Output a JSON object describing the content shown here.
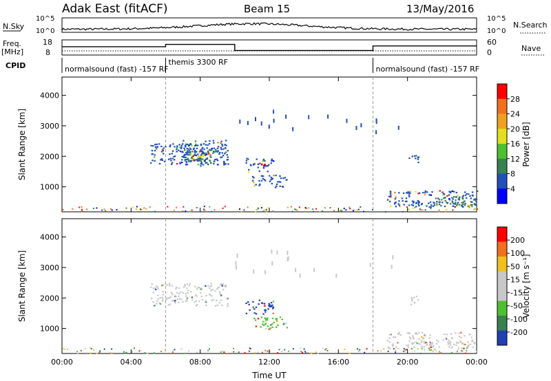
{
  "header": {
    "station": "Adak East (fitACF)",
    "beam": "Beam 15",
    "date": "13/May/2016"
  },
  "summary": {
    "nsky_label": "N.Sky",
    "nsearch_label": "N.Search",
    "nsky_ticks": [
      "10^5",
      "10^0"
    ],
    "nsearch_ticks": [
      "10^5",
      "10^0"
    ],
    "freq_label": "Freq.",
    "freq_unit": "[MHz]",
    "freq_ticks": [
      "18",
      "8"
    ],
    "nave_label": "Nave",
    "nave_ticks": [
      "60",
      "0"
    ],
    "cpid_label": "CPID",
    "cpid_segments": [
      {
        "label": "normalsound (fast) -157 RF",
        "start_hour": 0,
        "end_hour": 6
      },
      {
        "label": "themis 3300 RF",
        "start_hour": 6,
        "end_hour": 18
      },
      {
        "label": "normalsound (fast) -157 RF",
        "start_hour": 18,
        "end_hour": 24
      }
    ],
    "freq_profile": [
      {
        "start_hour": 0,
        "end_hour": 6,
        "level": 0.55
      },
      {
        "start_hour": 6,
        "end_hour": 10,
        "level": 0.7
      },
      {
        "start_hour": 10,
        "end_hour": 18,
        "level": 0.3
      },
      {
        "start_hour": 18,
        "end_hour": 24,
        "level": 0.6
      }
    ]
  },
  "chart_data": [
    {
      "type": "heatmap",
      "name": "power",
      "ylabel": "Slant Range [km]",
      "ylim": [
        180,
        4600
      ],
      "xlim": [
        0,
        24
      ],
      "yticks": [
        1000,
        2000,
        3000,
        4000
      ],
      "colorbar": {
        "label": "Power [dB]",
        "ticks": [
          "28",
          "24",
          "20",
          "16",
          "12",
          "8",
          "4"
        ],
        "colors": [
          "#0000ff",
          "#2050b8",
          "#3a8050",
          "#4dc030",
          "#e0e020",
          "#f0a020",
          "#f07020",
          "#ff0000"
        ]
      },
      "blobs": [
        {
          "x0": 5.1,
          "x1": 8.4,
          "y0": 1750,
          "y1": 2450,
          "color": "#2050b8"
        },
        {
          "x0": 6.8,
          "x1": 9.6,
          "y0": 1700,
          "y1": 2550,
          "color": "#2050b8"
        },
        {
          "x0": 7.0,
          "x1": 9.0,
          "y0": 1850,
          "y1": 2250,
          "color": "#3a8050"
        },
        {
          "x0": 7.4,
          "x1": 8.6,
          "y0": 1950,
          "y1": 2150,
          "color": "#e0e020"
        },
        {
          "x0": 10.6,
          "x1": 12.2,
          "y0": 1500,
          "y1": 1950,
          "color": "#2050b8"
        },
        {
          "x0": 11.0,
          "x1": 13.0,
          "y0": 1000,
          "y1": 1400,
          "color": "#2050b8"
        },
        {
          "x0": 18.8,
          "x1": 24.0,
          "y0": 350,
          "y1": 900,
          "color": "#2050b8"
        },
        {
          "x0": 21.5,
          "x1": 24.0,
          "y0": 400,
          "y1": 700,
          "color": "#3a8050"
        },
        {
          "x0": 20.0,
          "x1": 20.6,
          "y0": 1800,
          "y1": 2100,
          "color": "#2050b8"
        }
      ]
    },
    {
      "type": "heatmap",
      "name": "velocity",
      "xlabel": "Time UT",
      "ylabel": "Slant Range [km]",
      "ylim": [
        180,
        4600
      ],
      "xlim": [
        0,
        24
      ],
      "xticks": [
        "00:00",
        "04:00",
        "08:00",
        "12:00",
        "16:00",
        "20:00",
        "00:00"
      ],
      "yticks": [
        1000,
        2000,
        3000,
        4000
      ],
      "colorbar": {
        "label": "Velocity [m s⁻¹]",
        "ticks": [
          "200",
          "100",
          "50",
          "15",
          "-15",
          "-50",
          "-100",
          "-200"
        ],
        "colors": [
          "#2040b0",
          "#3a8050",
          "#4dc030",
          "#c8c8c8",
          "#c8c8c8",
          "#f0c020",
          "#f07020",
          "#ff0000"
        ]
      },
      "blobs": [
        {
          "x0": 5.1,
          "x1": 9.6,
          "y0": 1750,
          "y1": 2500,
          "color": "#c8c8c8"
        },
        {
          "x0": 10.6,
          "x1": 12.2,
          "y0": 1500,
          "y1": 1950,
          "color": "#2040b0"
        },
        {
          "x0": 11.0,
          "x1": 13.0,
          "y0": 1000,
          "y1": 1400,
          "color": "#4dc030"
        },
        {
          "x0": 18.8,
          "x1": 24.0,
          "y0": 350,
          "y1": 900,
          "color": "#c8c8c8"
        },
        {
          "x0": 20.0,
          "x1": 20.6,
          "y0": 1800,
          "y1": 2100,
          "color": "#c8c8c8"
        }
      ]
    }
  ]
}
